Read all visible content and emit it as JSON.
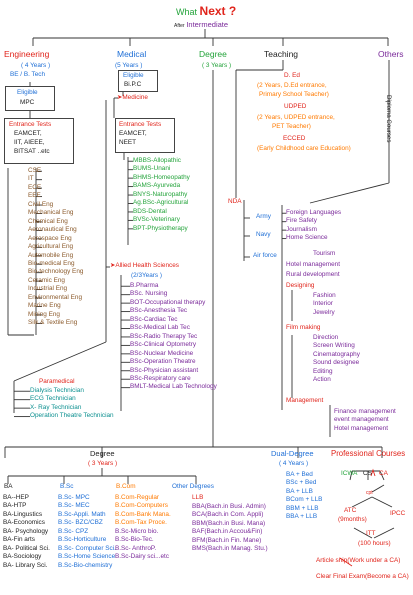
{
  "title": {
    "prefix": "What",
    "main": "Next ?",
    "q": "",
    "sub1": "After",
    "sub2": "Intermediate"
  },
  "engineering": {
    "label": "Engineering",
    "years": "( 4 Years )",
    "degree": "BE / B. Tech",
    "eligible_title": "Eligible",
    "eligible": "MPC",
    "tests_title": "Entrance Tests",
    "tests": [
      "EAMCET,",
      "IIT,    AIEEE,",
      "BITSAT ..etc"
    ],
    "branches": [
      "CSE",
      "IT",
      "ECE",
      "EEE",
      "Civil Eng",
      "Mechanical Eng",
      "Chemical Eng",
      "Aeronautical Eng",
      "Aerospace Eng",
      "Agricultural Eng",
      "Automobile Eng",
      "Bio-medical Eng",
      "Bio-technology Eng",
      "Ceramic Eng",
      "Industrial Eng",
      "Environmental Eng",
      "Marine Eng",
      "Mining Eng",
      "Silk & Textile Eng"
    ]
  },
  "paramedical": {
    "label": "Paramedical",
    "items": [
      "Dialysis Technician",
      "ECG Technician",
      "X- Ray Technician",
      "Operation Theatre  Technician"
    ]
  },
  "medical": {
    "label": "Medical",
    "years": "(5 Years )",
    "eligible_title": "Eligible",
    "eligible": "Bi.P.C",
    "medicine": "Medicine",
    "tests_title": "Entrance Tests",
    "tests": [
      "EAMCET,",
      "NEET"
    ],
    "courses": [
      "MBBS-Allopathic",
      "BUMS-Unani",
      "BHMS-Homeopathy",
      "BAMS-Ayurveda",
      "BNYS-Naturopathy",
      "Ag.BSc-Agricultural",
      "BDS-Dental",
      "BVSc-Veterinary",
      "BPT-Physiotherapy"
    ],
    "allied": "Allied Health Sciences",
    "allied_years": "(2/3Years )",
    "allied_items": [
      "B.Pharma",
      "BSc. Nursing",
      "BOT-Occupational therapy",
      "BSc-Anesthesia Tec",
      "BSc-Cardiac Tec",
      "BSc-Medical  Lab Tec",
      "BSc-Radio Therapy Tec",
      "BSc-Clinical Optometry",
      "BSc-Nuclear Medicine",
      "BSc-Operation Theatre",
      "BSc-Physician assistant",
      "BSc-Respiratory care",
      "BMLT-Medical Lab Technology"
    ]
  },
  "degree_top": {
    "label": "Degree",
    "years": "( 3 Years )"
  },
  "teaching": {
    "label": "Teaching",
    "ded": "D. Ed",
    "ded_desc": [
      "(2 Years, D.Ed entrance,",
      "Primary School Teacher)"
    ],
    "udped": "UDPED",
    "udped_desc": [
      "(2 Years, UDPED entrance,",
      "PET Teacher)"
    ],
    "ecced": "ECCED",
    "ecced_desc": "(Early Childhood care Education)"
  },
  "others": {
    "label": "Others",
    "diploma": "Diploma Courses",
    "list": [
      "Foreign Languages",
      "Fire Safety",
      "Journalism",
      "Home Science"
    ],
    "tourism": "Tourism",
    "hotel": "Hotel management",
    "rural": "Rural development",
    "designing": "Designing",
    "design_items": [
      "Fashion",
      "Interior",
      "Jewelry"
    ],
    "film": "Film making",
    "film_items": [
      "Direction",
      "Screen Writing",
      "Cinematography",
      "Sound designee",
      "Editing",
      "Action"
    ],
    "management": "Management",
    "mgmt_items": [
      "Finance management",
      "event management",
      "Hotel management"
    ]
  },
  "nda": {
    "label": "NDA",
    "items": [
      "Army",
      "Navy",
      "Air force"
    ]
  },
  "degree_bottom": {
    "label": "Degree",
    "years": "( 3 Years )",
    "ba_label": "BA",
    "ba": [
      "BA--HEP",
      "BA-HTP",
      "BA-Lingustics",
      "BA-Economics",
      "BA- Psychology",
      "BA-Fin arts",
      "BA- Political Sci.",
      "BA-Sociology",
      "BA- Library Sci."
    ],
    "bsc_label": "B.Sc",
    "bsc": [
      "B.Sc- MPC",
      "B.Sc- MEC",
      "B.Sc-Appli. Math",
      "B.Sc- BZC/CBZ",
      "B.Sc- CPZ",
      "B.Sc-Horticulture",
      "B.Sc- Computer Sci.",
      "B.Sc-Home Science",
      "B.Sc-Bio-chemistry"
    ],
    "bcom_label": "B.Com",
    "bcom": [
      "B.Com-Regular",
      "B.Com-Computers",
      "B.Com-Bank Mana.",
      "B.Com-Tax Proce."
    ],
    "other_label": "Other Degrees",
    "llb": "LLB",
    "llb_items": [
      "BBA(Bach.in Busi. Admin)",
      "BCA(Bach.in Com. Appli)",
      "BBM(Bach.in Busi. Mana)",
      "BAF(Bach.in Accou&Fin)",
      "BFM(Bach.in Fin. Mane)",
      "BMS(Bach.in Manag. Stu.)"
    ],
    "bsc_extra": [
      "B.Sc-Micro bio.",
      "B.Sc-Bio-Tec.",
      "B.Sc- AnthroP.",
      "B.Sc-Dairy sci...etc"
    ]
  },
  "dual": {
    "label": "Dual-Degree",
    "years": "( 4 Years )",
    "items": [
      "BA + Bed",
      "BSc + Bed",
      "BA + LLB",
      "BCom + LLB",
      "BBM + LLB",
      "BBA + LLB"
    ]
  },
  "prof": {
    "label": "Professional Courses",
    "icwa": "ICWA",
    "cs": "CS",
    "ca": "CA",
    "cpt": "cpt",
    "atc": "ATC",
    "atc_dur": "(9months)",
    "ipcc": "IPCC",
    "itt": "ITT",
    "itt_dur": "(100 hours)",
    "article": "Article ship(Work under a CA)",
    "clear": "Clear Final Exam(Become a CA)"
  },
  "colors": {
    "red": "#e0241b",
    "blue": "#1f6fd6",
    "green": "#23a33a",
    "purple": "#7a2a9a",
    "orange": "#ff7a00"
  }
}
